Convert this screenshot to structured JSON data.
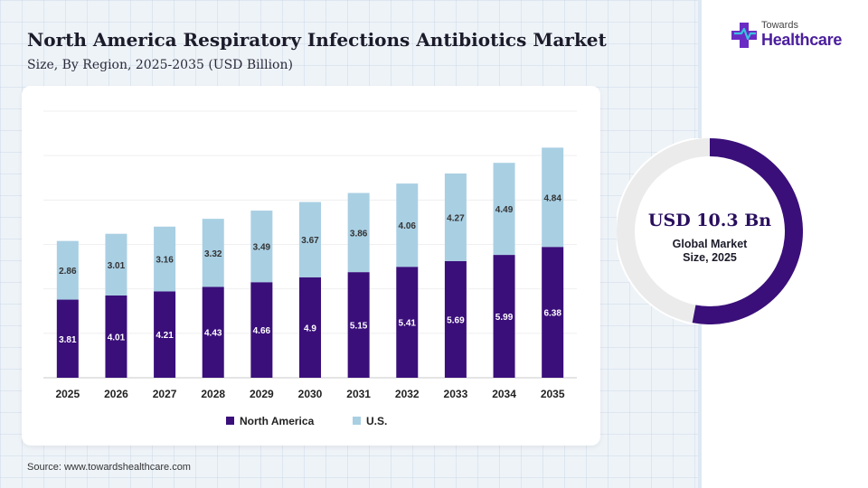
{
  "header": {
    "title": "North America Respiratory Infections Antibiotics Market",
    "subtitle": "Size, By Region, 2025-2035 (USD Billion)"
  },
  "logo": {
    "line1": "Towards",
    "line2": "Healthcare"
  },
  "chart_data": {
    "type": "bar",
    "stacked": true,
    "categories": [
      "2025",
      "2026",
      "2027",
      "2028",
      "2029",
      "2030",
      "2031",
      "2032",
      "2033",
      "2034",
      "2035"
    ],
    "series": [
      {
        "name": "North America",
        "color": "#3a0f7a",
        "values": [
          3.81,
          4.01,
          4.21,
          4.43,
          4.66,
          4.9,
          5.15,
          5.41,
          5.69,
          5.99,
          6.38
        ]
      },
      {
        "name": "U.S.",
        "color": "#a9cfe3",
        "values": [
          2.86,
          3.01,
          3.16,
          3.32,
          3.49,
          3.67,
          3.86,
          4.06,
          4.27,
          4.49,
          4.84
        ]
      }
    ],
    "ylim": [
      0,
      13
    ],
    "grid": true,
    "legend": "bottom-center",
    "title": "North America Respiratory Infections Antibiotics Market",
    "subtitle": "Size, By Region, 2025-2035 (USD Billion)"
  },
  "summary": {
    "value": "USD 10.3 Bn",
    "label_line1": "Global Market",
    "label_line2": "Size, 2025",
    "ring_fraction": 0.53,
    "ring_color": "#3a0f7a",
    "track_color": "#ebebeb"
  },
  "source": "Source: www.towardshealthcare.com"
}
